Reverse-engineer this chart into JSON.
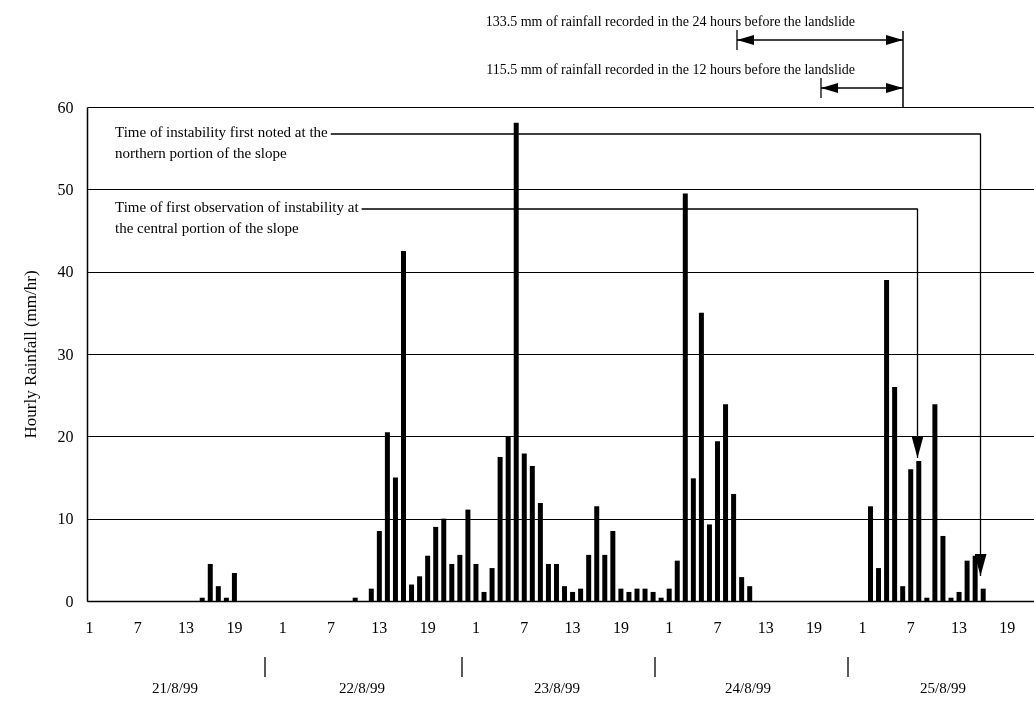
{
  "chart_data": {
    "type": "bar",
    "ylabel": "Hourly Rainfall (mm/hr)",
    "categories": [
      "1",
      null,
      null,
      null,
      null,
      null,
      "7",
      null,
      null,
      null,
      null,
      null,
      "13",
      null,
      null,
      null,
      null,
      null,
      "19",
      null,
      null,
      null,
      null,
      null,
      "1",
      null,
      null,
      null,
      null,
      null,
      "7",
      null,
      null,
      null,
      null,
      null,
      "13",
      null,
      null,
      null,
      null,
      null,
      "19",
      null,
      null,
      null,
      null,
      null,
      "1",
      null,
      null,
      null,
      null,
      null,
      "7",
      null,
      null,
      null,
      null,
      null,
      "13",
      null,
      null,
      null,
      null,
      null,
      "19",
      null,
      null,
      null,
      null,
      null,
      "1",
      null,
      null,
      null,
      null,
      null,
      "7",
      null,
      null,
      null,
      null,
      null,
      "13",
      null,
      null,
      null,
      null,
      null,
      "19",
      null,
      null,
      null,
      null,
      null,
      "1",
      null,
      null,
      null,
      null,
      null,
      "7",
      null,
      null,
      null,
      null,
      null,
      "13",
      null,
      null,
      null,
      null,
      null,
      "19",
      null,
      null,
      null
    ],
    "values": [
      null,
      null,
      null,
      null,
      null,
      null,
      null,
      null,
      null,
      null,
      null,
      null,
      null,
      null,
      0.4,
      4.5,
      1.8,
      0.4,
      3.4,
      null,
      null,
      null,
      null,
      null,
      null,
      null,
      null,
      null,
      null,
      null,
      null,
      null,
      null,
      0.4,
      null,
      1.5,
      8.5,
      20.5,
      15,
      42.5,
      2,
      3,
      5.5,
      9,
      10,
      4.5,
      5.6,
      11.1,
      4.5,
      1.1,
      4,
      17.5,
      20,
      58.1,
      17.9,
      16.4,
      11.9,
      4.5,
      4.5,
      1.8,
      1.1,
      1.5,
      5.6,
      11.5,
      5.6,
      8.5,
      1.5,
      1.1,
      1.5,
      1.5,
      1.1,
      0.4,
      1.5,
      4.9,
      49.5,
      14.9,
      35,
      9.3,
      19.4,
      23.9,
      13,
      2.9,
      1.8,
      null,
      null,
      null,
      null,
      null,
      null,
      null,
      null,
      null,
      null,
      null,
      null,
      null,
      null,
      11.5,
      4,
      39,
      26,
      1.8,
      16,
      17,
      0.4,
      23.9,
      7.9,
      0.4,
      1.1,
      4.9,
      5.5,
      1.5,
      null,
      null,
      null,
      null,
      null,
      null
    ],
    "color": "#000000",
    "ylim": [
      0,
      60
    ],
    "yticks": [
      0,
      10,
      20,
      30,
      40,
      50,
      60
    ],
    "grid": "y",
    "annotations": [
      "133.5 mm of rainfall recorded in the 24 hours before the landslide",
      "115.5 mm of rainfall recorded in the 12 hours before the landslide",
      "Time of instability first noted at the\nnorthern portion of the slope",
      "Time of first observation of instability at\nthe central portion of the slope",
      "21/8/99",
      "22/8/99",
      "23/8/99",
      "24/8/99",
      "25/8/99"
    ]
  }
}
